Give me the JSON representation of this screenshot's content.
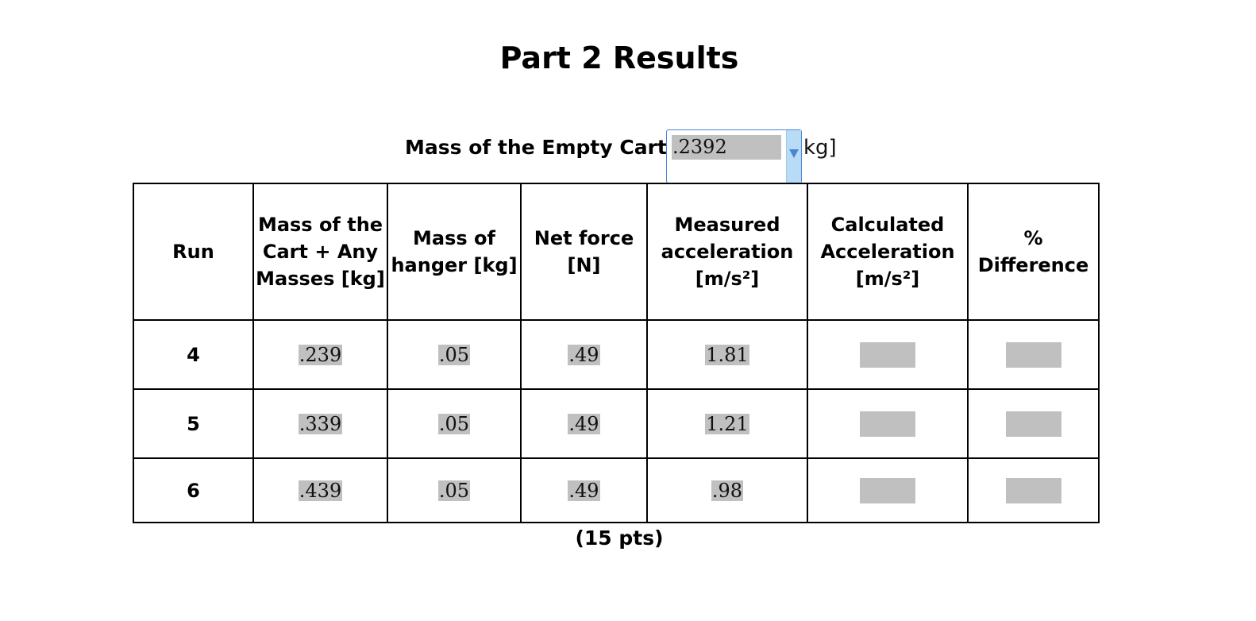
{
  "title": "Part 2 Results",
  "cart": {
    "label": "Mass of the Empty Cart =",
    "value": ".2392",
    "unit": "kg]"
  },
  "table": {
    "headers": {
      "run": "Run",
      "mass_cart": "Mass of the Cart + Any Masses [kg]",
      "mass_hanger": "Mass of hanger [kg]",
      "net_force": "Net force [N]",
      "measured_acc": "Measured acceleration [m/s²]",
      "calculated_acc": "Calculated Acceleration [m/s²]",
      "pct_diff": "% Difference"
    },
    "rows": [
      {
        "run": "4",
        "mass_cart": ".239",
        "mass_hanger": ".05",
        "net_force": ".49",
        "measured_acc": "1.81",
        "calculated_acc": "",
        "pct_diff": ""
      },
      {
        "run": "5",
        "mass_cart": ".339",
        "mass_hanger": ".05",
        "net_force": ".49",
        "measured_acc": "1.21",
        "calculated_acc": "",
        "pct_diff": ""
      },
      {
        "run": "6",
        "mass_cart": ".439",
        "mass_hanger": ".05",
        "net_force": ".49",
        "measured_acc": ".98",
        "calculated_acc": "",
        "pct_diff": ""
      }
    ]
  },
  "points": "(15 pts)",
  "colors": {
    "field_fill": "#c0c0c0",
    "dropdown_border": "#4a86d4",
    "dropdown_strip": "#b8dcf5"
  }
}
